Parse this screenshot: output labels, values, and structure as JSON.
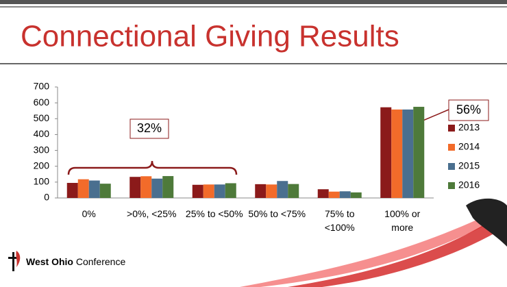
{
  "title": "Connectional Giving Results",
  "logo": {
    "bold": "West Ohio",
    "text": "Conference"
  },
  "chart_data": {
    "type": "bar",
    "categories": [
      "0%",
      ">0%, <25%",
      "25% to <50%",
      "50% to <75%",
      "75% to <100%",
      "100% or more"
    ],
    "series": [
      {
        "name": "2013",
        "color": "#8b1a1a",
        "values": [
          95,
          133,
          83,
          87,
          55,
          572
        ]
      },
      {
        "name": "2014",
        "color": "#f26b2a",
        "values": [
          118,
          137,
          85,
          85,
          40,
          558
        ]
      },
      {
        "name": "2015",
        "color": "#4a6f8f",
        "values": [
          110,
          122,
          85,
          107,
          42,
          558
        ]
      },
      {
        "name": "2016",
        "color": "#4e7a3a",
        "values": [
          90,
          138,
          93,
          88,
          35,
          575
        ]
      }
    ],
    "ylim": [
      0,
      700
    ],
    "yticks": [
      0,
      100,
      200,
      300,
      400,
      500,
      600,
      700
    ],
    "grid": false,
    "legend": "right",
    "annotations": [
      "32%",
      "56%"
    ]
  }
}
